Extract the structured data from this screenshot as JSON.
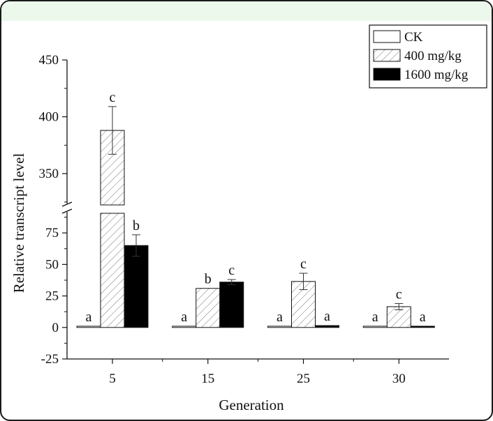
{
  "chart_data": {
    "type": "bar",
    "xlabel": "Generation",
    "ylabel": "Relative transcript level",
    "categories": [
      "5",
      "15",
      "25",
      "30"
    ],
    "axis_break": {
      "lower_range": [
        -25,
        95
      ],
      "upper_range": [
        320,
        450
      ]
    },
    "y_ticks_lower": [
      -25,
      0,
      25,
      50,
      75
    ],
    "y_ticks_upper": [
      350,
      400,
      450
    ],
    "legend_position": "top-right",
    "series": [
      {
        "name": "CK",
        "fill": "white",
        "values": [
          1,
          1,
          1,
          1
        ],
        "errors": [
          0,
          0,
          0,
          0
        ],
        "labels": [
          "a",
          "a",
          "a",
          "a"
        ]
      },
      {
        "name": "400 mg/kg",
        "fill": "hatched",
        "values": [
          388,
          31,
          36.5,
          16.5
        ],
        "errors": [
          21,
          0,
          6.5,
          2.5
        ],
        "labels": [
          "c",
          "b",
          "c",
          "c"
        ]
      },
      {
        "name": "1600 mg/kg",
        "fill": "black",
        "values": [
          65,
          36,
          1.5,
          1
        ],
        "errors": [
          8.5,
          2,
          0,
          0
        ],
        "labels": [
          "b",
          "c",
          "a",
          "a"
        ]
      }
    ]
  }
}
